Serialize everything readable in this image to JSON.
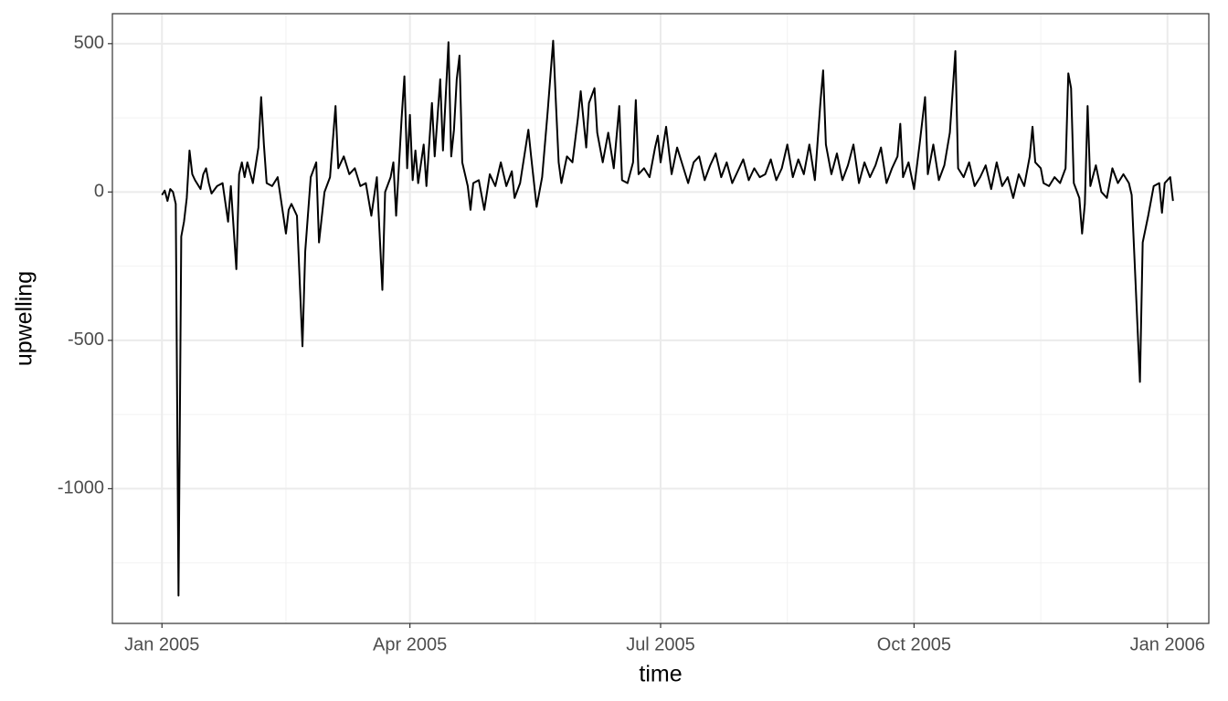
{
  "chart_data": {
    "type": "line",
    "x_label": "time",
    "y_label": "upwelling",
    "color": "#000000",
    "grid": true,
    "xlim": [
      -18,
      380
    ],
    "ylim": [
      -1454,
      601
    ],
    "xticks": [
      {
        "value": 0,
        "label": "Jan 2005"
      },
      {
        "value": 90,
        "label": "Apr 2005"
      },
      {
        "value": 181,
        "label": "Jul 2005"
      },
      {
        "value": 273,
        "label": "Oct 2005"
      },
      {
        "value": 365,
        "label": "Jan 2006"
      }
    ],
    "yticks": [
      -1000,
      -500,
      0,
      500
    ],
    "x": [
      0,
      1,
      2,
      3,
      4,
      5,
      6,
      7,
      8,
      9,
      10,
      11,
      12,
      14,
      15,
      16,
      17,
      18,
      20,
      22,
      24,
      25,
      27,
      28,
      29,
      30,
      31,
      33,
      35,
      36,
      37,
      38,
      40,
      42,
      45,
      46,
      47,
      49,
      51,
      52,
      54,
      56,
      57,
      59,
      61,
      63,
      64,
      66,
      68,
      70,
      72,
      74,
      76,
      78,
      80,
      81,
      83,
      84,
      85,
      87,
      88,
      89,
      90,
      91,
      92,
      93,
      95,
      96,
      98,
      99,
      101,
      102,
      104,
      105,
      106,
      107,
      108,
      109,
      111,
      112,
      113,
      115,
      117,
      119,
      121,
      123,
      125,
      127,
      128,
      130,
      132,
      133,
      134,
      136,
      138,
      140,
      142,
      143,
      144,
      145,
      147,
      149,
      151,
      152,
      154,
      155,
      157,
      158,
      160,
      162,
      164,
      166,
      167,
      169,
      171,
      172,
      173,
      175,
      177,
      179,
      180,
      181,
      183,
      185,
      187,
      189,
      191,
      193,
      195,
      197,
      199,
      201,
      203,
      205,
      207,
      209,
      211,
      213,
      215,
      217,
      219,
      221,
      223,
      225,
      227,
      229,
      231,
      233,
      235,
      237,
      239,
      240,
      241,
      243,
      245,
      247,
      249,
      251,
      253,
      255,
      257,
      259,
      261,
      263,
      265,
      267,
      268,
      269,
      271,
      273,
      275,
      277,
      278,
      280,
      282,
      284,
      286,
      288,
      289,
      291,
      293,
      295,
      297,
      299,
      301,
      303,
      305,
      307,
      309,
      311,
      313,
      315,
      316,
      317,
      319,
      320,
      322,
      324,
      326,
      328,
      329,
      330,
      331,
      333,
      334,
      335,
      336,
      337,
      339,
      341,
      343,
      345,
      347,
      349,
      351,
      352,
      355,
      356,
      358,
      360,
      362,
      363,
      364,
      366,
      367
    ],
    "values": [
      -10,
      5,
      -30,
      10,
      0,
      -40,
      -1360,
      -150,
      -100,
      -20,
      140,
      60,
      40,
      10,
      60,
      80,
      30,
      -5,
      20,
      30,
      -100,
      20,
      -260,
      60,
      100,
      50,
      100,
      30,
      150,
      320,
      160,
      30,
      20,
      50,
      -140,
      -60,
      -40,
      -80,
      -520,
      -200,
      50,
      100,
      -170,
      0,
      50,
      290,
      80,
      120,
      60,
      80,
      20,
      30,
      -80,
      50,
      -330,
      0,
      50,
      100,
      -80,
      250,
      390,
      80,
      260,
      40,
      140,
      30,
      160,
      20,
      300,
      120,
      380,
      140,
      505,
      120,
      210,
      380,
      460,
      100,
      20,
      -60,
      30,
      40,
      -60,
      60,
      20,
      100,
      20,
      70,
      -20,
      30,
      150,
      210,
      120,
      -50,
      50,
      270,
      510,
      300,
      100,
      30,
      120,
      100,
      250,
      340,
      150,
      300,
      350,
      200,
      100,
      200,
      80,
      290,
      40,
      30,
      100,
      310,
      60,
      80,
      50,
      150,
      190,
      100,
      220,
      60,
      150,
      90,
      30,
      100,
      120,
      40,
      90,
      130,
      50,
      100,
      30,
      70,
      110,
      40,
      80,
      50,
      60,
      110,
      40,
      80,
      160,
      50,
      110,
      60,
      160,
      40,
      300,
      410,
      160,
      60,
      130,
      40,
      90,
      160,
      30,
      100,
      50,
      90,
      150,
      30,
      80,
      120,
      230,
      50,
      100,
      10,
      160,
      320,
      60,
      160,
      40,
      90,
      200,
      475,
      80,
      50,
      100,
      20,
      50,
      90,
      10,
      100,
      20,
      50,
      -20,
      60,
      20,
      120,
      220,
      100,
      80,
      30,
      20,
      50,
      30,
      80,
      400,
      350,
      30,
      -20,
      -140,
      -40,
      290,
      20,
      90,
      0,
      -20,
      80,
      30,
      60,
      30,
      -10,
      -640,
      -170,
      -80,
      20,
      30,
      -70,
      30,
      50,
      -30
    ]
  }
}
